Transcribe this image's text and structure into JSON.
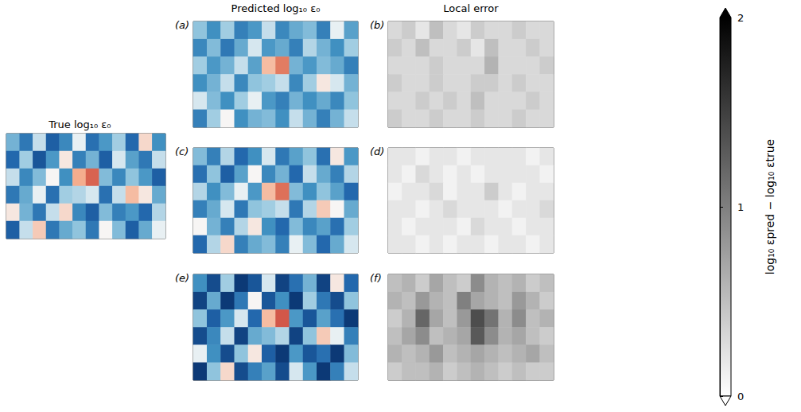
{
  "chart_data": {
    "type": "heatmap",
    "tick_labels": false,
    "column_titles": [
      "Predicted log₁₀ ε₀",
      "Local error"
    ],
    "field_colorbar": {
      "range": [
        -3,
        1
      ],
      "colors": [
        "#08306b",
        "#2166ac",
        "#4393c3",
        "#92c5de",
        "#f7f7f7",
        "#f4a582",
        "#d6604d",
        "#b2182b"
      ]
    },
    "error_colorbar": {
      "label": "log₁₀ εpred − log₁₀ εtrue",
      "range": [
        0,
        2
      ],
      "ticks": [
        0,
        1,
        2
      ],
      "colors": [
        "#ffffff",
        "#000000"
      ]
    },
    "panels": [
      {
        "title": "True log₁₀ ε₀",
        "kind": "field",
        "cells": [
          [
            -1.5,
            -2.2,
            -1.0,
            -2.5,
            -2.0,
            -0.8,
            -2.3,
            -1.8,
            -1.2,
            -2.4,
            -0.5,
            -1.9
          ],
          [
            -2.4,
            -1.2,
            -2.6,
            -1.8,
            -0.6,
            -2.1,
            -1.5,
            -2.5,
            -0.9,
            -1.7,
            -2.2,
            -1.0
          ],
          [
            -1.0,
            -2.0,
            -1.4,
            -0.7,
            -1.9,
            -0.2,
            0.4,
            -1.4,
            -2.0,
            -1.3,
            -1.8,
            -2.5
          ],
          [
            -2.2,
            -1.6,
            -0.8,
            -2.3,
            -1.2,
            -1.1,
            -0.9,
            -2.3,
            -1.0,
            -0.3,
            -0.6,
            -1.6
          ],
          [
            -0.6,
            -1.5,
            -2.2,
            -1.0,
            -0.5,
            -2.0,
            -2.5,
            -1.4,
            -2.1,
            -1.8,
            -2.4,
            -1.1
          ],
          [
            -2.5,
            -1.0,
            -0.4,
            -2.2,
            -1.6,
            -1.3,
            -2.2,
            -0.7,
            -1.4,
            -2.5,
            -1.6,
            -0.8
          ]
        ]
      },
      {
        "letter": "(a)",
        "kind": "field",
        "cells": [
          [
            -1.3,
            -1.9,
            -1.2,
            -2.1,
            -1.8,
            -1.0,
            -2.0,
            -1.6,
            -1.4,
            -2.1,
            -0.8,
            -1.7
          ],
          [
            -2.0,
            -1.4,
            -2.2,
            -1.6,
            -0.9,
            -1.8,
            -1.6,
            -2.1,
            -1.1,
            -1.5,
            -1.9,
            -1.2
          ],
          [
            -1.2,
            -1.8,
            -1.5,
            -1.0,
            -1.7,
            -0.3,
            0.2,
            -1.5,
            -1.8,
            -1.4,
            -1.6,
            -2.1
          ],
          [
            -1.9,
            -1.5,
            -1.0,
            -2.0,
            -1.3,
            -1.2,
            -1.0,
            -2.0,
            -1.2,
            -0.6,
            -0.9,
            -1.5
          ],
          [
            -0.9,
            -1.4,
            -1.9,
            -1.2,
            -0.8,
            -1.8,
            -2.1,
            -1.5,
            -1.9,
            -1.6,
            -2.0,
            -1.3
          ],
          [
            -2.1,
            -1.2,
            -0.7,
            -1.9,
            -1.5,
            -1.4,
            -1.9,
            -1.0,
            -1.5,
            -2.1,
            -1.5,
            -1.0
          ]
        ]
      },
      {
        "letter": "(b)",
        "kind": "error",
        "cells": [
          [
            0.3,
            0.4,
            0.2,
            0.5,
            0.3,
            0.2,
            0.4,
            0.3,
            0.3,
            0.4,
            0.3,
            0.3
          ],
          [
            0.4,
            0.3,
            0.5,
            0.3,
            0.3,
            0.4,
            0.2,
            0.5,
            0.3,
            0.3,
            0.4,
            0.3
          ],
          [
            0.3,
            0.3,
            0.3,
            0.4,
            0.3,
            0.3,
            0.3,
            0.6,
            0.3,
            0.3,
            0.3,
            0.4
          ],
          [
            0.4,
            0.3,
            0.3,
            0.4,
            0.3,
            0.3,
            0.4,
            0.4,
            0.3,
            0.4,
            0.3,
            0.3
          ],
          [
            0.3,
            0.3,
            0.4,
            0.3,
            0.4,
            0.3,
            0.5,
            0.3,
            0.3,
            0.3,
            0.4,
            0.3
          ],
          [
            0.4,
            0.3,
            0.3,
            0.4,
            0.3,
            0.3,
            0.4,
            0.3,
            0.3,
            0.4,
            0.3,
            0.3
          ]
        ]
      },
      {
        "letter": "(c)",
        "kind": "field",
        "cells": [
          [
            -1.4,
            -2.1,
            -1.1,
            -2.4,
            -1.9,
            -0.9,
            -2.2,
            -1.7,
            -1.3,
            -2.3,
            -0.6,
            -1.8
          ],
          [
            -2.3,
            -1.3,
            -2.5,
            -1.7,
            -0.7,
            -2.0,
            -1.5,
            -2.4,
            -1.0,
            -1.6,
            -2.1,
            -1.1
          ],
          [
            -1.1,
            -1.9,
            -1.4,
            -0.8,
            -1.8,
            -0.3,
            0.3,
            -1.4,
            -1.9,
            -1.3,
            -1.7,
            -2.4
          ],
          [
            -2.1,
            -1.6,
            -0.9,
            -2.2,
            -1.3,
            -1.2,
            -1.0,
            -2.2,
            -1.1,
            -0.4,
            -0.7,
            -1.6
          ],
          [
            -0.7,
            -1.5,
            -2.1,
            -1.1,
            -0.6,
            -1.9,
            -2.4,
            -1.4,
            -2.0,
            -1.7,
            -2.3,
            -1.2
          ],
          [
            -2.4,
            -1.1,
            -0.5,
            -2.1,
            -1.6,
            -1.4,
            -2.1,
            -0.8,
            -1.4,
            -2.4,
            -1.6,
            -0.9
          ]
        ]
      },
      {
        "letter": "(d)",
        "kind": "error",
        "cells": [
          [
            0.2,
            0.2,
            0.1,
            0.2,
            0.2,
            0.1,
            0.2,
            0.2,
            0.2,
            0.2,
            0.1,
            0.2
          ],
          [
            0.2,
            0.1,
            0.3,
            0.2,
            0.1,
            0.2,
            0.1,
            0.2,
            0.2,
            0.2,
            0.2,
            0.1
          ],
          [
            0.1,
            0.2,
            0.2,
            0.3,
            0.1,
            0.2,
            0.2,
            0.4,
            0.2,
            0.1,
            0.2,
            0.2
          ],
          [
            0.2,
            0.2,
            0.1,
            0.2,
            0.3,
            0.2,
            0.2,
            0.2,
            0.1,
            0.2,
            0.2,
            0.3
          ],
          [
            0.2,
            0.1,
            0.2,
            0.2,
            0.2,
            0.1,
            0.3,
            0.2,
            0.2,
            0.1,
            0.2,
            0.2
          ],
          [
            0.2,
            0.2,
            0.1,
            0.2,
            0.1,
            0.2,
            0.2,
            0.1,
            0.2,
            0.2,
            0.1,
            0.2
          ]
        ]
      },
      {
        "letter": "(e)",
        "kind": "field",
        "cells": [
          [
            -1.9,
            -2.7,
            -1.2,
            -2.9,
            -2.6,
            -0.9,
            -2.8,
            -2.3,
            -1.5,
            -2.8,
            -0.6,
            -2.4
          ],
          [
            -2.8,
            -1.6,
            -2.9,
            -2.2,
            -0.7,
            -2.6,
            -1.9,
            -2.9,
            -1.2,
            -2.2,
            -2.7,
            -1.3
          ],
          [
            -1.3,
            -2.5,
            -1.8,
            -0.9,
            -2.4,
            -0.3,
            0.5,
            -1.8,
            -2.6,
            -1.7,
            -2.3,
            -2.9
          ],
          [
            -2.7,
            -2.0,
            -1.0,
            -2.8,
            -1.6,
            -1.4,
            -1.1,
            -2.8,
            -1.3,
            -0.4,
            -0.8,
            -2.1
          ],
          [
            -0.8,
            -1.9,
            -2.7,
            -1.3,
            -0.6,
            -2.5,
            -2.9,
            -1.8,
            -2.6,
            -2.3,
            -2.9,
            -1.4
          ],
          [
            -2.9,
            -1.3,
            -0.5,
            -2.7,
            -2.1,
            -1.7,
            -2.7,
            -0.9,
            -1.8,
            -2.9,
            -2.1,
            -1.0
          ]
        ]
      },
      {
        "letter": "(f)",
        "kind": "error",
        "cells": [
          [
            0.5,
            0.6,
            0.4,
            0.7,
            0.5,
            0.4,
            0.9,
            0.6,
            0.5,
            0.6,
            0.4,
            0.5
          ],
          [
            0.6,
            0.5,
            0.8,
            0.6,
            0.5,
            1.0,
            0.7,
            0.6,
            0.5,
            0.8,
            0.6,
            0.4
          ],
          [
            0.4,
            0.6,
            1.2,
            0.7,
            0.5,
            0.8,
            1.4,
            1.1,
            0.6,
            0.9,
            0.5,
            0.6
          ],
          [
            0.5,
            0.7,
            0.9,
            0.5,
            0.6,
            0.7,
            1.3,
            0.9,
            0.6,
            0.7,
            0.5,
            0.4
          ],
          [
            0.6,
            0.5,
            0.6,
            0.8,
            0.5,
            0.6,
            0.7,
            0.6,
            0.5,
            0.6,
            0.7,
            0.5
          ],
          [
            0.4,
            0.5,
            0.5,
            0.6,
            0.4,
            0.5,
            0.6,
            0.5,
            0.4,
            0.5,
            0.4,
            0.4
          ]
        ]
      }
    ]
  }
}
